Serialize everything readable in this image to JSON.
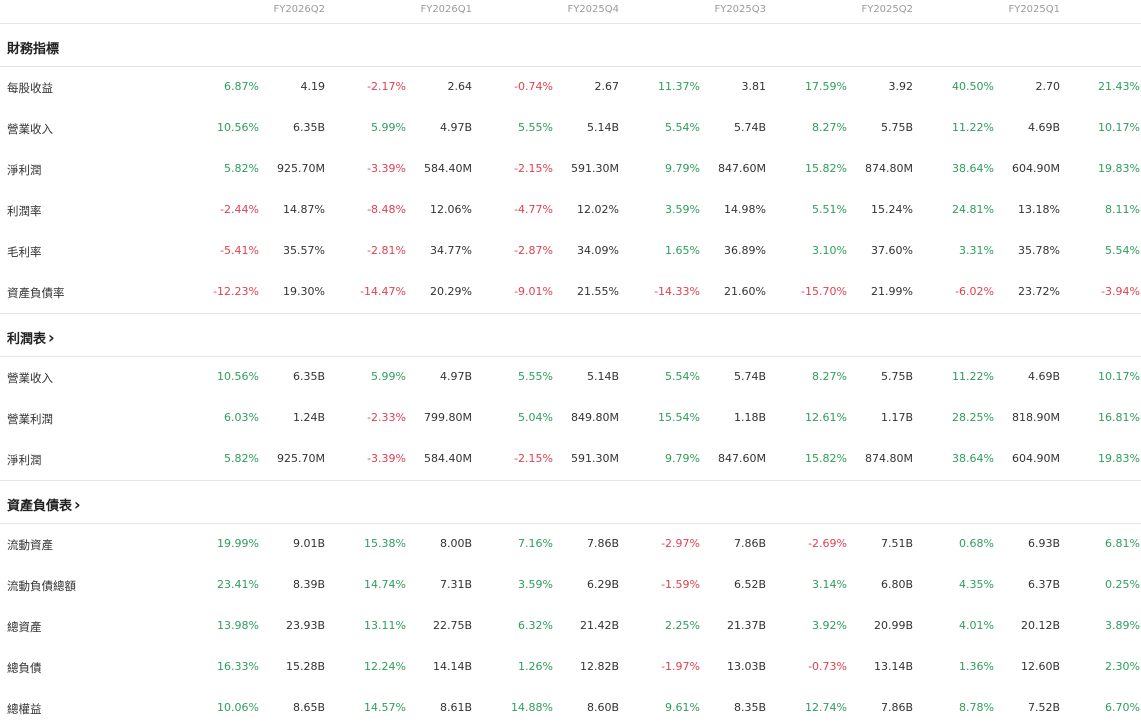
{
  "colors": {
    "positive": "#2e9e5b",
    "negative": "#e0414f"
  },
  "periods": [
    "FY2026Q2",
    "FY2026Q1",
    "FY2025Q4",
    "FY2025Q3",
    "FY2025Q2",
    "FY2025Q1"
  ],
  "sections": [
    {
      "title": "財務指標",
      "link": false,
      "rows": [
        {
          "label": "每股收益",
          "cells": [
            [
              "6.87%",
              "4.19"
            ],
            [
              "-2.17%",
              "2.64"
            ],
            [
              "-0.74%",
              "2.67"
            ],
            [
              "11.37%",
              "3.81"
            ],
            [
              "17.59%",
              "3.92"
            ],
            [
              "40.50%",
              "2.70"
            ],
            [
              "21.43%",
              ""
            ]
          ]
        },
        {
          "label": "營業收入",
          "cells": [
            [
              "10.56%",
              "6.35B"
            ],
            [
              "5.99%",
              "4.97B"
            ],
            [
              "5.55%",
              "5.14B"
            ],
            [
              "5.54%",
              "5.74B"
            ],
            [
              "8.27%",
              "5.75B"
            ],
            [
              "11.22%",
              "4.69B"
            ],
            [
              "10.17%",
              ""
            ]
          ]
        },
        {
          "label": "淨利潤",
          "cells": [
            [
              "5.82%",
              "925.70M"
            ],
            [
              "-3.39%",
              "584.40M"
            ],
            [
              "-2.15%",
              "591.30M"
            ],
            [
              "9.79%",
              "847.60M"
            ],
            [
              "15.82%",
              "874.80M"
            ],
            [
              "38.64%",
              "604.90M"
            ],
            [
              "19.83%",
              ""
            ]
          ]
        },
        {
          "label": "利潤率",
          "cells": [
            [
              "-2.44%",
              "14.87%"
            ],
            [
              "-8.48%",
              "12.06%"
            ],
            [
              "-4.77%",
              "12.02%"
            ],
            [
              "3.59%",
              "14.98%"
            ],
            [
              "5.51%",
              "15.24%"
            ],
            [
              "24.81%",
              "13.18%"
            ],
            [
              "8.11%",
              ""
            ]
          ]
        },
        {
          "label": "毛利率",
          "cells": [
            [
              "-5.41%",
              "35.57%"
            ],
            [
              "-2.81%",
              "34.77%"
            ],
            [
              "-2.87%",
              "34.09%"
            ],
            [
              "1.65%",
              "36.89%"
            ],
            [
              "3.10%",
              "37.60%"
            ],
            [
              "3.31%",
              "35.78%"
            ],
            [
              "5.54%",
              ""
            ]
          ]
        },
        {
          "label": "資產負債率",
          "cells": [
            [
              "-12.23%",
              "19.30%"
            ],
            [
              "-14.47%",
              "20.29%"
            ],
            [
              "-9.01%",
              "21.55%"
            ],
            [
              "-14.33%",
              "21.60%"
            ],
            [
              "-15.70%",
              "21.99%"
            ],
            [
              "-6.02%",
              "23.72%"
            ],
            [
              "-3.94%",
              ""
            ]
          ]
        }
      ]
    },
    {
      "title": "利潤表",
      "link": true,
      "rows": [
        {
          "label": "營業收入",
          "cells": [
            [
              "10.56%",
              "6.35B"
            ],
            [
              "5.99%",
              "4.97B"
            ],
            [
              "5.55%",
              "5.14B"
            ],
            [
              "5.54%",
              "5.74B"
            ],
            [
              "8.27%",
              "5.75B"
            ],
            [
              "11.22%",
              "4.69B"
            ],
            [
              "10.17%",
              ""
            ]
          ]
        },
        {
          "label": "營業利潤",
          "cells": [
            [
              "6.03%",
              "1.24B"
            ],
            [
              "-2.33%",
              "799.80M"
            ],
            [
              "5.04%",
              "849.80M"
            ],
            [
              "15.54%",
              "1.18B"
            ],
            [
              "12.61%",
              "1.17B"
            ],
            [
              "28.25%",
              "818.90M"
            ],
            [
              "16.81%",
              ""
            ]
          ]
        },
        {
          "label": "淨利潤",
          "cells": [
            [
              "5.82%",
              "925.70M"
            ],
            [
              "-3.39%",
              "584.40M"
            ],
            [
              "-2.15%",
              "591.30M"
            ],
            [
              "9.79%",
              "847.60M"
            ],
            [
              "15.82%",
              "874.80M"
            ],
            [
              "38.64%",
              "604.90M"
            ],
            [
              "19.83%",
              ""
            ]
          ]
        }
      ]
    },
    {
      "title": "資產負債表",
      "link": true,
      "rows": [
        {
          "label": "流動資產",
          "cells": [
            [
              "19.99%",
              "9.01B"
            ],
            [
              "15.38%",
              "8.00B"
            ],
            [
              "7.16%",
              "7.86B"
            ],
            [
              "-2.97%",
              "7.86B"
            ],
            [
              "-2.69%",
              "7.51B"
            ],
            [
              "0.68%",
              "6.93B"
            ],
            [
              "6.81%",
              ""
            ]
          ]
        },
        {
          "label": "流動負債總額",
          "cells": [
            [
              "23.41%",
              "8.39B"
            ],
            [
              "14.74%",
              "7.31B"
            ],
            [
              "3.59%",
              "6.29B"
            ],
            [
              "-1.59%",
              "6.52B"
            ],
            [
              "3.14%",
              "6.80B"
            ],
            [
              "4.35%",
              "6.37B"
            ],
            [
              "0.25%",
              ""
            ]
          ]
        },
        {
          "label": "總資產",
          "cells": [
            [
              "13.98%",
              "23.93B"
            ],
            [
              "13.11%",
              "22.75B"
            ],
            [
              "6.32%",
              "21.42B"
            ],
            [
              "2.25%",
              "21.37B"
            ],
            [
              "3.92%",
              "20.99B"
            ],
            [
              "4.01%",
              "20.12B"
            ],
            [
              "3.89%",
              ""
            ]
          ]
        },
        {
          "label": "總負債",
          "cells": [
            [
              "16.33%",
              "15.28B"
            ],
            [
              "12.24%",
              "14.14B"
            ],
            [
              "1.26%",
              "12.82B"
            ],
            [
              "-1.97%",
              "13.03B"
            ],
            [
              "-0.73%",
              "13.14B"
            ],
            [
              "1.36%",
              "12.60B"
            ],
            [
              "2.30%",
              ""
            ]
          ]
        },
        {
          "label": "總權益",
          "cells": [
            [
              "10.06%",
              "8.65B"
            ],
            [
              "14.57%",
              "8.61B"
            ],
            [
              "14.88%",
              "8.60B"
            ],
            [
              "9.61%",
              "8.35B"
            ],
            [
              "12.74%",
              "7.86B"
            ],
            [
              "8.78%",
              "7.52B"
            ],
            [
              "6.70%",
              ""
            ]
          ]
        }
      ]
    }
  ]
}
